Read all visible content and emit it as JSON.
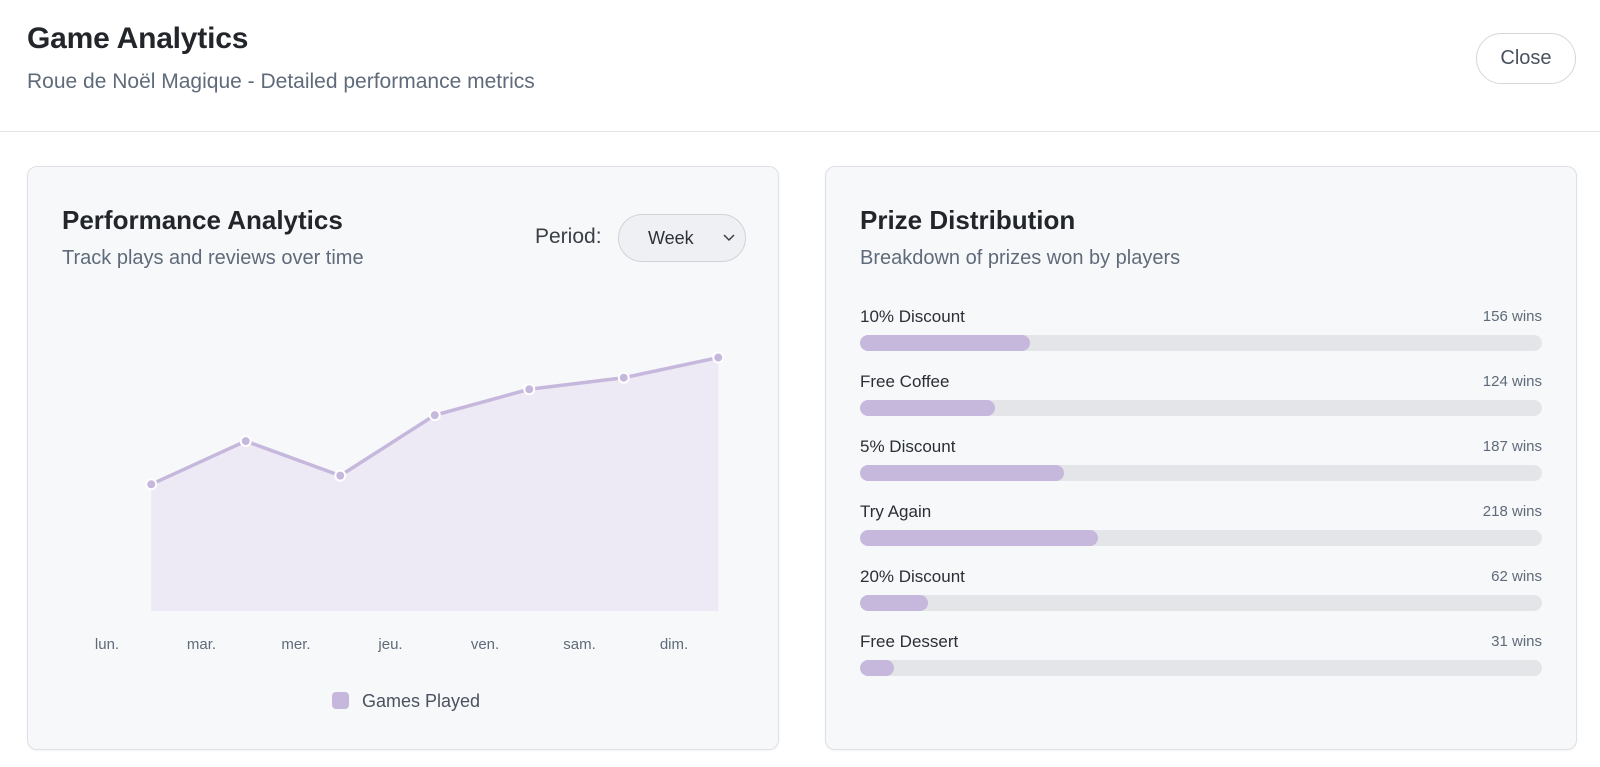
{
  "header": {
    "title": "Game Analytics",
    "subtitle": "Roue de Noël Magique - Detailed performance metrics",
    "close_label": "Close"
  },
  "performance": {
    "title": "Performance Analytics",
    "subtitle": "Track plays and reviews over time",
    "period_label": "Period:",
    "period_value": "Week",
    "legend_label": "Games Played"
  },
  "chart_data": {
    "type": "area",
    "categories": [
      "lun.",
      "mar.",
      "mer.",
      "jeu.",
      "ven.",
      "sam.",
      "dim."
    ],
    "series": [
      {
        "name": "Games Played",
        "values": [
          44,
          59,
          47,
          68,
          77,
          81,
          88
        ]
      }
    ],
    "ylim": [
      0,
      100
    ],
    "grid": false,
    "legend": "bottom",
    "colors": {
      "line": "#c6b8dc",
      "fill": "#ebe6f3"
    }
  },
  "prizes": {
    "title": "Prize Distribution",
    "subtitle": "Breakdown of prizes won by players",
    "max_wins": 625,
    "items": [
      {
        "name": "10% Discount",
        "wins_label": "156 wins",
        "wins": 156
      },
      {
        "name": "Free Coffee",
        "wins_label": "124 wins",
        "wins": 124
      },
      {
        "name": "5% Discount",
        "wins_label": "187 wins",
        "wins": 187
      },
      {
        "name": "Try Again",
        "wins_label": "218 wins",
        "wins": 218
      },
      {
        "name": "20% Discount",
        "wins_label": "62 wins",
        "wins": 62
      },
      {
        "name": "Free Dessert",
        "wins_label": "31 wins",
        "wins": 31
      }
    ]
  },
  "colors": {
    "accent": "#c6b8dc",
    "track": "#e4e5e8"
  }
}
